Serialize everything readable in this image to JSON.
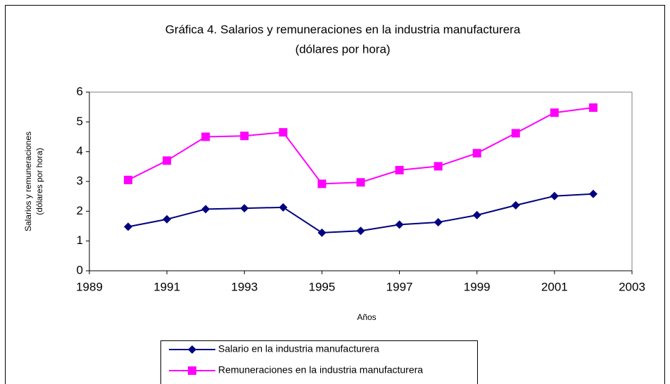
{
  "chart_data": {
    "type": "line",
    "title": "Gráfica 4. Salarios y remuneraciones en la industria manufacturera",
    "subtitle": "(dólares por hora)",
    "xlabel": "Años",
    "ylabel": [
      "Salarios y remuneraciones",
      "(dólares por hora)"
    ],
    "x": [
      1990,
      1991,
      1992,
      1993,
      1994,
      1995,
      1996,
      1997,
      1998,
      1999,
      2000,
      2001,
      2002
    ],
    "series": [
      {
        "name": "Salario en la industria manufacturera",
        "color": "#000080",
        "marker": "diamond",
        "values": [
          1.48,
          1.73,
          2.07,
          2.1,
          2.13,
          1.28,
          1.34,
          1.55,
          1.63,
          1.87,
          2.2,
          2.51,
          2.58
        ]
      },
      {
        "name": "Remuneraciones en la industria manufacturera",
        "color": "#FF00FF",
        "marker": "square",
        "values": [
          3.05,
          3.7,
          4.5,
          4.53,
          4.65,
          2.92,
          2.97,
          3.38,
          3.51,
          3.95,
          4.62,
          5.31,
          5.48
        ]
      }
    ],
    "xlim": [
      1989,
      2003
    ],
    "xticks": [
      1989,
      1991,
      1993,
      1995,
      1997,
      1999,
      2001,
      2003
    ],
    "ylim": [
      0,
      6
    ],
    "yticks": [
      0,
      1,
      2,
      3,
      4,
      5,
      6
    ],
    "grid": false,
    "legend": "bottom"
  }
}
